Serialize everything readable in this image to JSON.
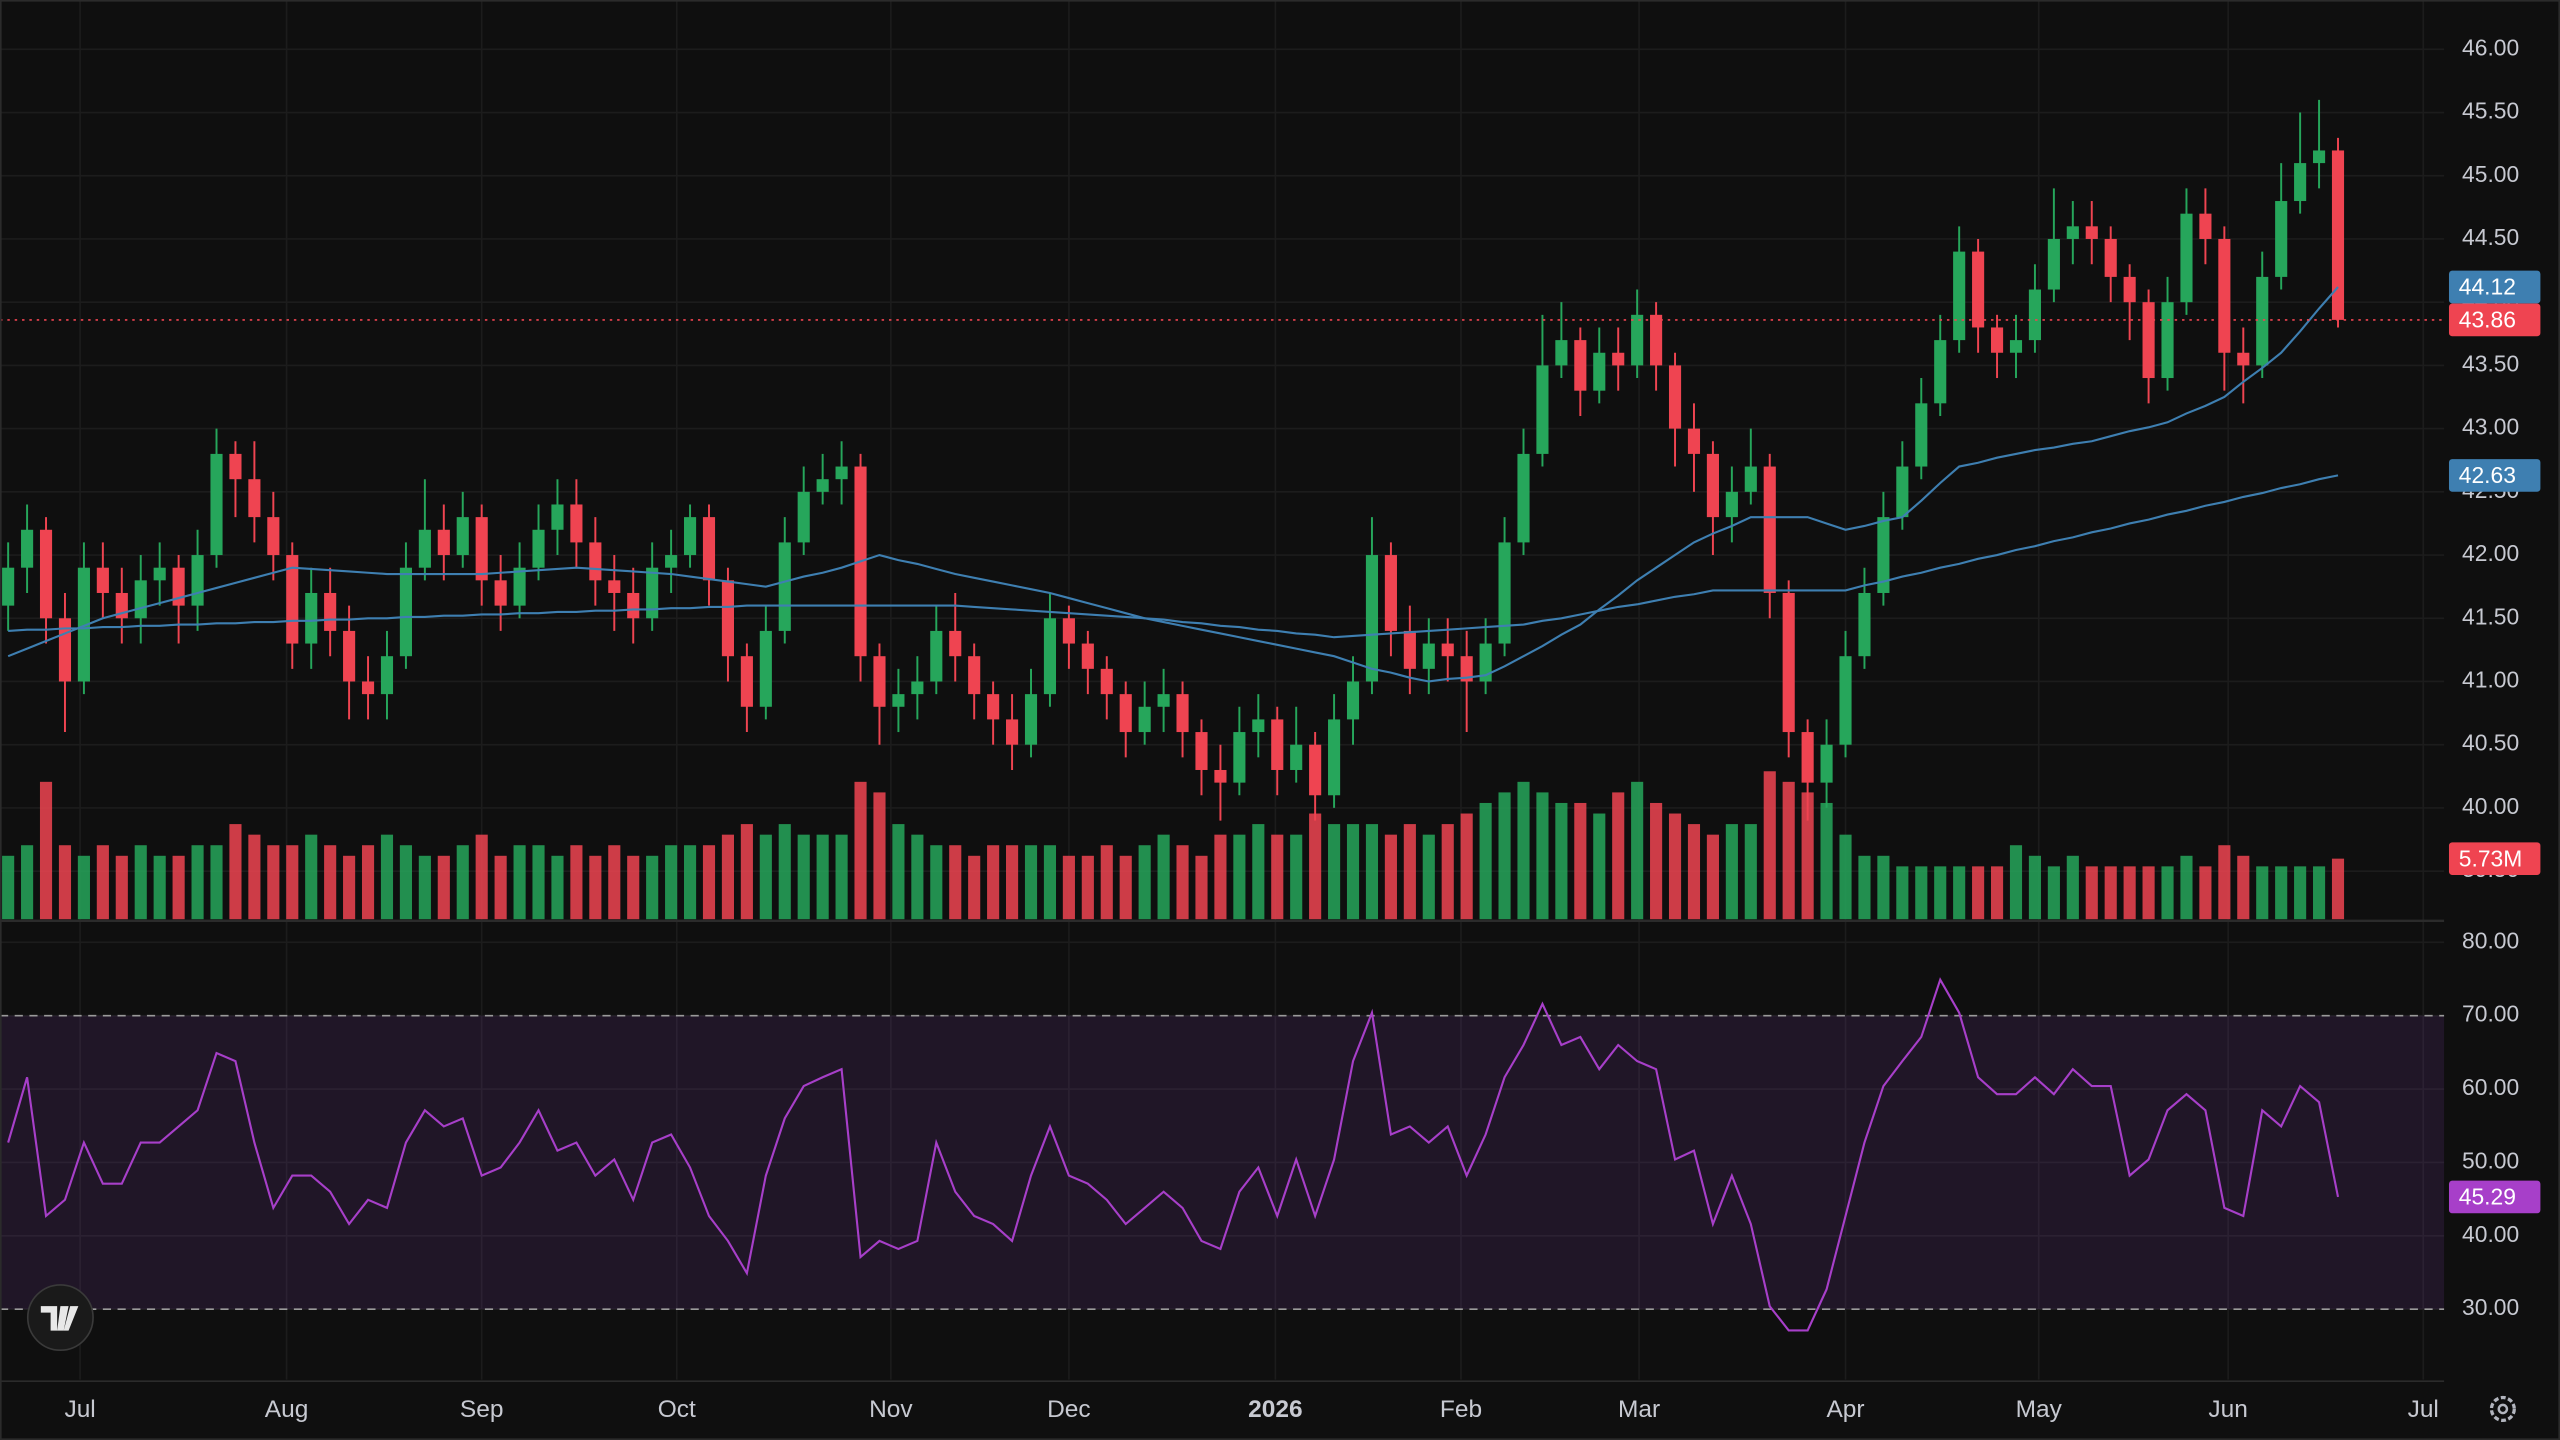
{
  "chart_data": {
    "type": "candlestick",
    "xlim": [
      -0.43,
      128.6
    ],
    "xticks": [
      {
        "value": 3.8,
        "label": "Jul"
      },
      {
        "value": 14.7,
        "label": "Aug"
      },
      {
        "value": 25,
        "label": "Sep"
      },
      {
        "value": 35.3,
        "label": "Oct"
      },
      {
        "value": 46.6,
        "label": "Nov"
      },
      {
        "value": 56,
        "label": "Dec"
      },
      {
        "value": 66.9,
        "label": "2026",
        "bold": true
      },
      {
        "value": 76.7,
        "label": "Feb"
      },
      {
        "value": 86.1,
        "label": "Mar"
      },
      {
        "value": 97,
        "label": "Apr"
      },
      {
        "value": 107.2,
        "label": "May"
      },
      {
        "value": 117.2,
        "label": "Jun"
      },
      {
        "value": 127.5,
        "label": "Jul"
      }
    ],
    "ylim": [
      39.12,
      46.39
    ],
    "yticks": [
      {
        "value": 39.5,
        "label": "39.50"
      },
      {
        "value": 40,
        "label": "40.00"
      },
      {
        "value": 40.5,
        "label": "40.50"
      },
      {
        "value": 41,
        "label": "41.00"
      },
      {
        "value": 41.5,
        "label": "41.50"
      },
      {
        "value": 42,
        "label": "42.00"
      },
      {
        "value": 42.5,
        "label": "42.50"
      },
      {
        "value": 43,
        "label": "43.00"
      },
      {
        "value": 43.5,
        "label": "43.50"
      },
      {
        "value": 44,
        "label": "44.00"
      },
      {
        "value": 44.5,
        "label": "44.50"
      },
      {
        "value": 45,
        "label": "45.00"
      },
      {
        "value": 45.5,
        "label": "45.50"
      },
      {
        "value": 46,
        "label": "46.00"
      }
    ],
    "grid": true,
    "up_color": "#26a65b",
    "down_color": "#ef4451",
    "open": [
      41.6,
      41.9,
      42.2,
      41.5,
      41.0,
      41.9,
      41.7,
      41.5,
      41.8,
      41.9,
      41.6,
      42.0,
      42.8,
      42.6,
      42.3,
      42.0,
      41.3,
      41.7,
      41.4,
      41.0,
      40.9,
      41.2,
      41.9,
      42.2,
      42.0,
      42.3,
      41.8,
      41.6,
      41.9,
      42.2,
      42.4,
      42.1,
      41.8,
      41.7,
      41.5,
      41.9,
      42.0,
      42.3,
      41.8,
      41.2,
      40.8,
      41.4,
      42.1,
      42.5,
      42.6,
      42.7,
      41.2,
      40.8,
      40.9,
      41.0,
      41.4,
      41.2,
      40.9,
      40.7,
      40.5,
      40.9,
      41.5,
      41.3,
      41.1,
      40.9,
      40.6,
      40.8,
      40.9,
      40.6,
      40.3,
      40.2,
      40.6,
      40.7,
      40.3,
      40.5,
      40.1,
      40.7,
      41.0,
      42.0,
      41.4,
      41.1,
      41.3,
      41.2,
      41.0,
      41.3,
      42.1,
      42.8,
      43.5,
      43.7,
      43.3,
      43.6,
      43.5,
      43.9,
      43.5,
      43.0,
      42.8,
      42.3,
      42.5,
      42.7,
      41.7,
      40.6,
      40.2,
      40.5,
      41.2,
      41.7,
      42.3,
      42.7,
      43.2,
      43.7,
      44.4,
      43.8,
      43.6,
      43.7,
      44.1,
      44.5,
      44.6,
      44.5,
      44.2,
      44.0,
      43.4,
      44.0,
      44.7,
      44.5,
      43.6,
      43.5,
      44.2,
      44.8,
      45.1,
      45.2
    ],
    "high": [
      42.1,
      42.4,
      42.3,
      41.7,
      42.1,
      42.1,
      41.9,
      42.0,
      42.1,
      42.0,
      42.2,
      43.0,
      42.9,
      42.9,
      42.5,
      42.1,
      41.9,
      41.9,
      41.6,
      41.2,
      41.4,
      42.1,
      42.6,
      42.4,
      42.5,
      42.4,
      42.0,
      42.1,
      42.4,
      42.6,
      42.6,
      42.3,
      42.0,
      41.9,
      42.1,
      42.2,
      42.4,
      42.4,
      41.9,
      41.3,
      41.6,
      42.3,
      42.7,
      42.8,
      42.9,
      42.8,
      41.3,
      41.1,
      41.2,
      41.6,
      41.7,
      41.3,
      41.0,
      40.9,
      41.1,
      41.7,
      41.6,
      41.4,
      41.2,
      41.0,
      41.0,
      41.1,
      41.0,
      40.7,
      40.5,
      40.8,
      40.9,
      40.8,
      40.8,
      40.6,
      40.9,
      41.2,
      42.3,
      42.1,
      41.6,
      41.5,
      41.5,
      41.4,
      41.5,
      42.3,
      43.0,
      43.9,
      44.0,
      43.8,
      43.8,
      43.8,
      44.1,
      44.0,
      43.6,
      43.2,
      42.9,
      42.7,
      43.0,
      42.8,
      41.8,
      40.7,
      40.7,
      41.4,
      41.9,
      42.5,
      42.9,
      43.4,
      43.9,
      44.6,
      44.5,
      43.9,
      43.9,
      44.3,
      44.9,
      44.8,
      44.8,
      44.6,
      44.3,
      44.1,
      44.2,
      44.9,
      44.9,
      44.6,
      43.8,
      44.4,
      45.1,
      45.5,
      45.6,
      45.3
    ],
    "low": [
      41.4,
      41.7,
      41.3,
      40.6,
      40.9,
      41.5,
      41.3,
      41.3,
      41.6,
      41.3,
      41.4,
      41.9,
      42.3,
      42.1,
      41.8,
      41.1,
      41.1,
      41.2,
      40.7,
      40.7,
      40.7,
      41.1,
      41.8,
      41.8,
      41.9,
      41.6,
      41.4,
      41.5,
      41.8,
      42.0,
      41.9,
      41.6,
      41.4,
      41.3,
      41.4,
      41.7,
      41.9,
      41.6,
      41.0,
      40.6,
      40.7,
      41.3,
      42.0,
      42.4,
      42.4,
      41.0,
      40.5,
      40.6,
      40.7,
      40.9,
      41.0,
      40.7,
      40.5,
      40.3,
      40.4,
      40.8,
      41.1,
      40.9,
      40.7,
      40.4,
      40.5,
      40.6,
      40.4,
      40.1,
      39.9,
      40.1,
      40.4,
      40.1,
      40.2,
      39.9,
      40.0,
      40.5,
      40.9,
      41.2,
      40.9,
      40.9,
      41.0,
      40.6,
      40.9,
      41.2,
      42.0,
      42.7,
      43.4,
      43.1,
      43.2,
      43.3,
      43.4,
      43.3,
      42.7,
      42.5,
      42.0,
      42.1,
      42.4,
      41.5,
      40.4,
      39.9,
      40.0,
      40.4,
      41.1,
      41.6,
      42.2,
      42.6,
      43.1,
      43.6,
      43.6,
      43.4,
      43.4,
      43.6,
      44.0,
      44.3,
      44.3,
      44.0,
      43.7,
      43.2,
      43.3,
      43.9,
      44.3,
      43.3,
      43.2,
      43.4,
      44.1,
      44.7,
      44.9,
      43.8
    ],
    "close": [
      41.9,
      42.2,
      41.5,
      41.0,
      41.9,
      41.7,
      41.5,
      41.8,
      41.9,
      41.6,
      42.0,
      42.8,
      42.6,
      42.3,
      42.0,
      41.3,
      41.7,
      41.4,
      41.0,
      40.9,
      41.2,
      41.9,
      42.2,
      42.0,
      42.3,
      41.8,
      41.6,
      41.9,
      42.2,
      42.4,
      42.1,
      41.8,
      41.7,
      41.5,
      41.9,
      42.0,
      42.3,
      41.8,
      41.2,
      40.8,
      41.4,
      42.1,
      42.5,
      42.6,
      42.7,
      41.2,
      40.8,
      40.9,
      41.0,
      41.4,
      41.2,
      40.9,
      40.7,
      40.5,
      40.9,
      41.5,
      41.3,
      41.1,
      40.9,
      40.6,
      40.8,
      40.9,
      40.6,
      40.3,
      40.2,
      40.6,
      40.7,
      40.3,
      40.5,
      40.1,
      40.7,
      41.0,
      42.0,
      41.4,
      41.1,
      41.3,
      41.2,
      41.0,
      41.3,
      42.1,
      42.8,
      43.5,
      43.7,
      43.3,
      43.6,
      43.5,
      43.9,
      43.5,
      43.0,
      42.8,
      42.3,
      42.5,
      42.7,
      41.7,
      40.6,
      40.2,
      40.5,
      41.2,
      41.7,
      42.3,
      42.7,
      43.2,
      43.7,
      44.4,
      43.8,
      43.6,
      43.7,
      44.1,
      44.5,
      44.6,
      44.5,
      44.2,
      44.0,
      43.4,
      44.0,
      44.7,
      44.5,
      43.6,
      43.5,
      44.2,
      44.8,
      45.1,
      45.2,
      43.86
    ],
    "close_label": "43.86",
    "moving_averages": [
      {
        "color": "#3e7fb1",
        "value_label": "44.12",
        "values": [
          41.2,
          41.26,
          41.32,
          41.38,
          41.44,
          41.5,
          41.54,
          41.58,
          41.62,
          41.66,
          41.7,
          41.74,
          41.78,
          41.82,
          41.86,
          41.9,
          41.89,
          41.88,
          41.87,
          41.86,
          41.85,
          41.85,
          41.85,
          41.85,
          41.85,
          41.85,
          41.86,
          41.87,
          41.88,
          41.89,
          41.9,
          41.89,
          41.88,
          41.87,
          41.86,
          41.85,
          41.83,
          41.81,
          41.79,
          41.77,
          41.75,
          41.79,
          41.83,
          41.86,
          41.9,
          41.95,
          42.0,
          41.96,
          41.93,
          41.89,
          41.85,
          41.82,
          41.79,
          41.76,
          41.73,
          41.7,
          41.66,
          41.62,
          41.58,
          41.54,
          41.5,
          41.47,
          41.44,
          41.41,
          41.38,
          41.35,
          41.32,
          41.29,
          41.26,
          41.23,
          41.2,
          41.15,
          41.1,
          41.07,
          41.03,
          41.0,
          41.02,
          41.03,
          41.05,
          41.12,
          41.2,
          41.28,
          41.37,
          41.45,
          41.57,
          41.68,
          41.8,
          41.9,
          42.0,
          42.1,
          42.17,
          42.23,
          42.3,
          42.3,
          42.3,
          42.3,
          42.25,
          42.2,
          42.23,
          42.27,
          42.3,
          42.43,
          42.57,
          42.7,
          42.73,
          42.77,
          42.8,
          42.83,
          42.85,
          42.88,
          42.9,
          42.94,
          42.98,
          43.01,
          43.05,
          43.12,
          43.18,
          43.25,
          43.37,
          43.48,
          43.6,
          43.77,
          43.95,
          44.12
        ]
      },
      {
        "color": "#3e7fb1",
        "value_label": "42.63",
        "values": [
          41.4,
          41.41,
          41.41,
          41.42,
          41.42,
          41.43,
          41.43,
          41.44,
          41.44,
          41.45,
          41.45,
          41.46,
          41.46,
          41.47,
          41.47,
          41.48,
          41.48,
          41.49,
          41.49,
          41.5,
          41.5,
          41.51,
          41.51,
          41.52,
          41.52,
          41.53,
          41.53,
          41.54,
          41.54,
          41.55,
          41.55,
          41.56,
          41.56,
          41.57,
          41.57,
          41.58,
          41.58,
          41.59,
          41.59,
          41.6,
          41.6,
          41.6,
          41.6,
          41.6,
          41.6,
          41.6,
          41.6,
          41.6,
          41.6,
          41.6,
          41.6,
          41.59,
          41.58,
          41.57,
          41.56,
          41.55,
          41.54,
          41.53,
          41.52,
          41.51,
          41.5,
          41.49,
          41.47,
          41.46,
          41.44,
          41.43,
          41.41,
          41.4,
          41.38,
          41.37,
          41.35,
          41.36,
          41.37,
          41.38,
          41.39,
          41.4,
          41.41,
          41.42,
          41.43,
          41.44,
          41.45,
          41.48,
          41.5,
          41.53,
          41.56,
          41.59,
          41.61,
          41.64,
          41.67,
          41.69,
          41.72,
          41.72,
          41.72,
          41.72,
          41.72,
          41.72,
          41.72,
          41.72,
          41.76,
          41.79,
          41.83,
          41.86,
          41.9,
          41.93,
          41.97,
          42.0,
          42.04,
          42.07,
          42.11,
          42.14,
          42.18,
          42.21,
          42.25,
          42.28,
          42.32,
          42.35,
          42.39,
          42.42,
          42.46,
          42.49,
          42.53,
          42.56,
          42.6,
          42.63
        ]
      }
    ],
    "volume": {
      "ylim": [
        0,
        87
      ],
      "value_label": "5.73M",
      "values": [
        6,
        7,
        13,
        7,
        6,
        7,
        6,
        7,
        6,
        6,
        7,
        7,
        9,
        8,
        7,
        7,
        8,
        7,
        6,
        7,
        8,
        7,
        6,
        6,
        7,
        8,
        6,
        7,
        7,
        6,
        7,
        6,
        7,
        6,
        6,
        7,
        7,
        7,
        8,
        9,
        8,
        9,
        8,
        8,
        8,
        13,
        12,
        9,
        8,
        7,
        7,
        6,
        7,
        7,
        7,
        7,
        6,
        6,
        7,
        6,
        7,
        8,
        7,
        6,
        8,
        8,
        9,
        8,
        8,
        10,
        9,
        9,
        9,
        8,
        9,
        8,
        9,
        10,
        11,
        12,
        13,
        12,
        11,
        11,
        10,
        12,
        13,
        11,
        10,
        9,
        8,
        9,
        9,
        14,
        13,
        12,
        11,
        8,
        6,
        6,
        5,
        5,
        5,
        5,
        5,
        5,
        7,
        6,
        5,
        6,
        5,
        5,
        5,
        5,
        5,
        6,
        5,
        7,
        6,
        5,
        5,
        5,
        5,
        5.73
      ]
    },
    "rsi": {
      "color": "#a73fc9",
      "value_label": "45.29",
      "ylim": [
        20.4,
        82.7
      ],
      "bands": [
        30,
        70
      ],
      "yticks": [
        {
          "value": 30,
          "label": "30.00"
        },
        {
          "value": 40,
          "label": "40.00"
        },
        {
          "value": 50,
          "label": "50.00"
        },
        {
          "value": 60,
          "label": "60.00"
        },
        {
          "value": 70,
          "label": "70.00"
        },
        {
          "value": 80,
          "label": "80.00"
        }
      ],
      "values": [
        52.7,
        61.6,
        42.7,
        44.9,
        52.7,
        47.1,
        47.1,
        52.7,
        52.7,
        54.9,
        57.1,
        64.9,
        63.8,
        52.7,
        43.8,
        48.2,
        48.2,
        46.0,
        41.6,
        44.9,
        43.8,
        52.7,
        57.1,
        54.9,
        56.0,
        48.2,
        49.3,
        52.7,
        57.1,
        51.6,
        52.7,
        48.2,
        50.4,
        44.9,
        52.7,
        53.8,
        49.3,
        42.7,
        39.3,
        34.9,
        48.2,
        56.0,
        60.4,
        61.6,
        62.7,
        37.1,
        39.3,
        38.2,
        39.3,
        52.7,
        46.0,
        42.7,
        41.6,
        39.3,
        48.2,
        54.9,
        48.2,
        47.1,
        44.9,
        41.6,
        43.8,
        46.0,
        43.8,
        39.3,
        38.2,
        46.0,
        49.3,
        42.7,
        50.4,
        42.7,
        50.4,
        63.8,
        70.4,
        53.8,
        54.9,
        52.7,
        54.9,
        48.2,
        53.8,
        61.6,
        66.0,
        71.6,
        66.0,
        67.1,
        62.7,
        66.0,
        63.8,
        62.7,
        50.4,
        51.6,
        41.6,
        48.2,
        41.6,
        30.4,
        27.1,
        27.1,
        32.7,
        42.7,
        52.7,
        60.4,
        63.8,
        67.1,
        74.9,
        70.4,
        61.6,
        59.3,
        59.3,
        61.6,
        59.3,
        62.7,
        60.4,
        60.4,
        48.2,
        50.4,
        57.1,
        59.3,
        57.1,
        43.8,
        42.7,
        57.1,
        54.9,
        60.4,
        58.2,
        45.29
      ]
    }
  }
}
